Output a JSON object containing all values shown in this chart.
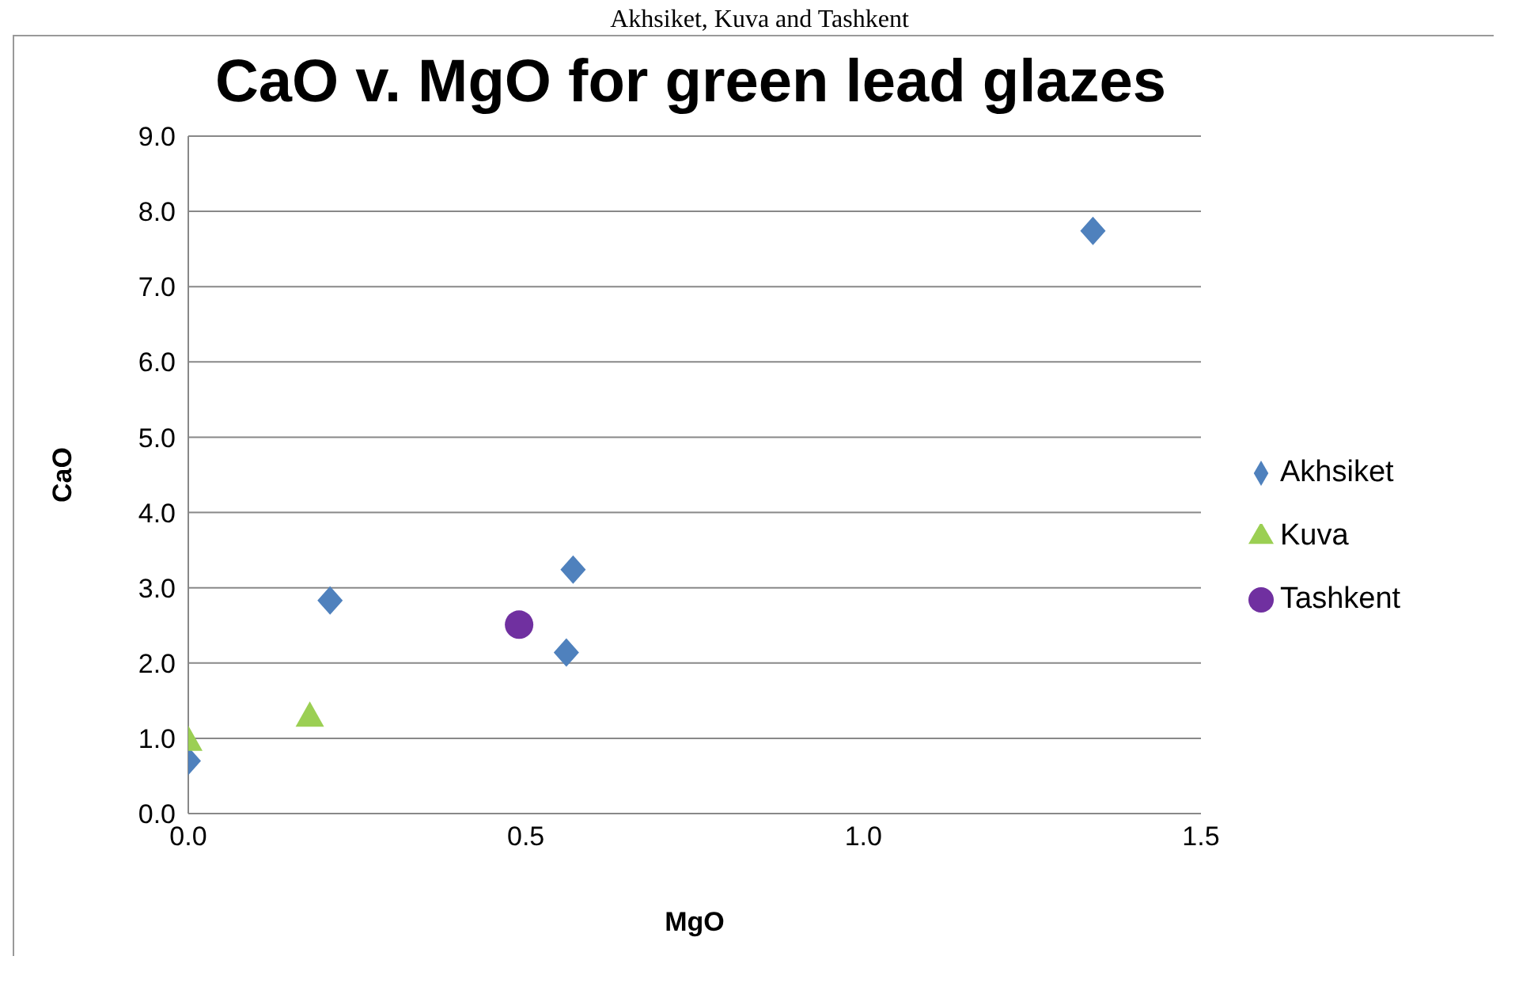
{
  "chart_data": {
    "type": "scatter",
    "title": "CaO v. MgO for green lead glazes",
    "annotations": [
      "Akhsiket, Kuva and Tashkent"
    ],
    "xlabel": "MgO",
    "ylabel": "CaO",
    "xlim": [
      0,
      1.5
    ],
    "xticks": [
      {
        "value": 0,
        "label": "0.0"
      },
      {
        "value": 0.5,
        "label": "0.5"
      },
      {
        "value": 1,
        "label": "1.0"
      },
      {
        "value": 1.5,
        "label": "1.5"
      }
    ],
    "ylim": [
      0,
      9
    ],
    "yticks": [
      {
        "value": 0,
        "label": "0.0"
      },
      {
        "value": 1,
        "label": "1.0"
      },
      {
        "value": 2,
        "label": "2.0"
      },
      {
        "value": 3,
        "label": "3.0"
      },
      {
        "value": 4,
        "label": "4.0"
      },
      {
        "value": 5,
        "label": "5.0"
      },
      {
        "value": 6,
        "label": "6.0"
      },
      {
        "value": 7,
        "label": "7.0"
      },
      {
        "value": 8,
        "label": "8.0"
      },
      {
        "value": 9,
        "label": "9.0"
      }
    ],
    "grid": "y",
    "legend": "right",
    "series": [
      {
        "name": "Akhsiket",
        "color": "#4f81bd",
        "marker": "diamond",
        "x": [
          0,
          0.21,
          0.57,
          0.56,
          1.34
        ],
        "values": [
          0.7,
          2.83,
          3.24,
          2.14,
          7.74
        ]
      },
      {
        "name": "Kuva",
        "color": "#9bcf53",
        "marker": "triangle",
        "x": [
          0,
          0.18
        ],
        "values": [
          0.98,
          1.3
        ]
      },
      {
        "name": "Tashkent",
        "color": "#7030a0",
        "marker": "circle",
        "x": [
          0.49
        ],
        "values": [
          2.51
        ]
      }
    ]
  }
}
